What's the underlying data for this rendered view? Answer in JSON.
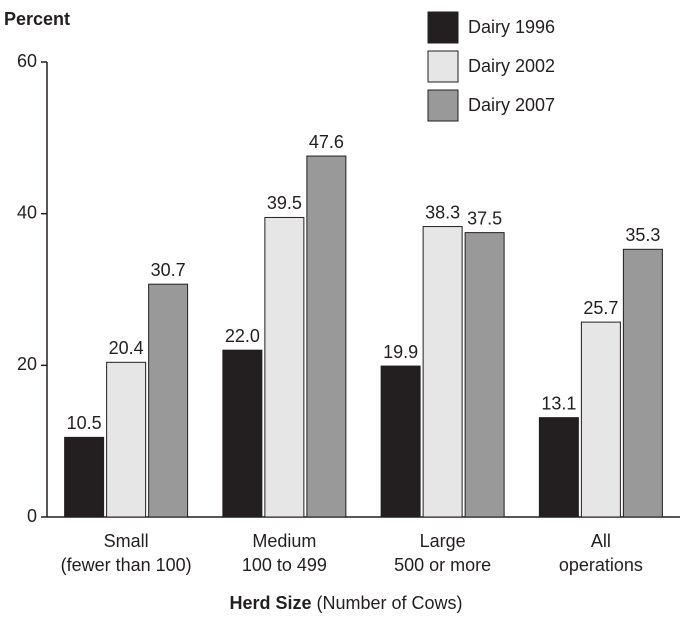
{
  "chart_data": {
    "type": "bar",
    "ylabel": "Percent",
    "xlabel": [
      "Herd Size",
      "(Number of Cows)"
    ],
    "categories": [
      [
        "Small",
        "(fewer than 100)"
      ],
      [
        "Medium",
        "100 to 499"
      ],
      [
        "Large",
        "500 or more"
      ],
      [
        "All",
        "operations"
      ]
    ],
    "series": [
      {
        "name": "Dairy 1996",
        "color": "#231f20",
        "values": [
          10.5,
          22.0,
          19.9,
          13.1
        ],
        "value_labels": [
          "10.5",
          "22.0",
          "19.9",
          "13.1"
        ]
      },
      {
        "name": "Dairy 2002",
        "color": "#e6e6e6",
        "values": [
          20.4,
          39.5,
          38.3,
          25.7
        ],
        "value_labels": [
          "20.4",
          "39.5",
          "38.3",
          "25.7"
        ]
      },
      {
        "name": "Dairy 2007",
        "color": "#999999",
        "values": [
          30.7,
          47.6,
          37.5,
          35.3
        ],
        "value_labels": [
          "30.7",
          "47.6",
          "37.5",
          "35.3"
        ]
      }
    ],
    "ylim": [
      0,
      60
    ],
    "yticks": [
      0,
      20,
      40,
      60
    ],
    "grid": false,
    "legend": "top-right"
  }
}
